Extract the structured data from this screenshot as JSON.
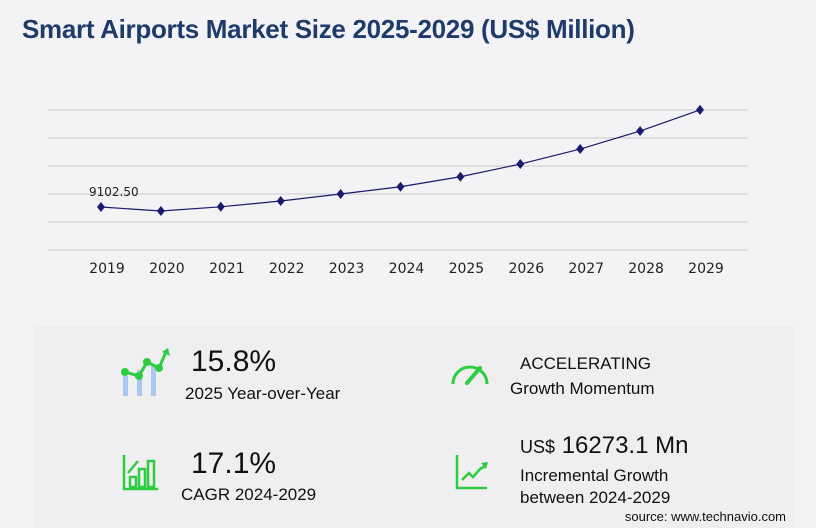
{
  "title": "Smart Airports Market Size 2025-2029 (US$ Million)",
  "chart_data": {
    "type": "line",
    "categories": [
      "2019",
      "2020",
      "2021",
      "2022",
      "2023",
      "2024",
      "2025",
      "2026",
      "2027",
      "2028",
      "2029"
    ],
    "values": [
      9102.5,
      8256,
      9150,
      10373,
      11855,
      13400,
      15517,
      18206,
      21382,
      25192,
      29673
    ],
    "data_labels": [
      {
        "category": "2019",
        "text": "9102.50"
      }
    ],
    "ylim": [
      0,
      29650
    ],
    "grid": true,
    "series_color": "#1a1a6e",
    "marker": "diamond"
  },
  "stats": {
    "yoy_value": "15.8%",
    "yoy_label": "2025 Year-over-Year",
    "momentum_value": "ACCELERATING",
    "momentum_label": "Growth Momentum",
    "cagr_value": "17.1%",
    "cagr_label": "CAGR 2024-2029",
    "incr_prefix": "US$",
    "incr_value": "16273.1 Mn",
    "incr_label1": "Incremental Growth",
    "incr_label2": "between 2024-2029"
  },
  "source": "source: www.technavio.com",
  "colors": {
    "title": "#1f3b6b",
    "accent": "#2ecc40",
    "bars": "#a9c8f0"
  }
}
